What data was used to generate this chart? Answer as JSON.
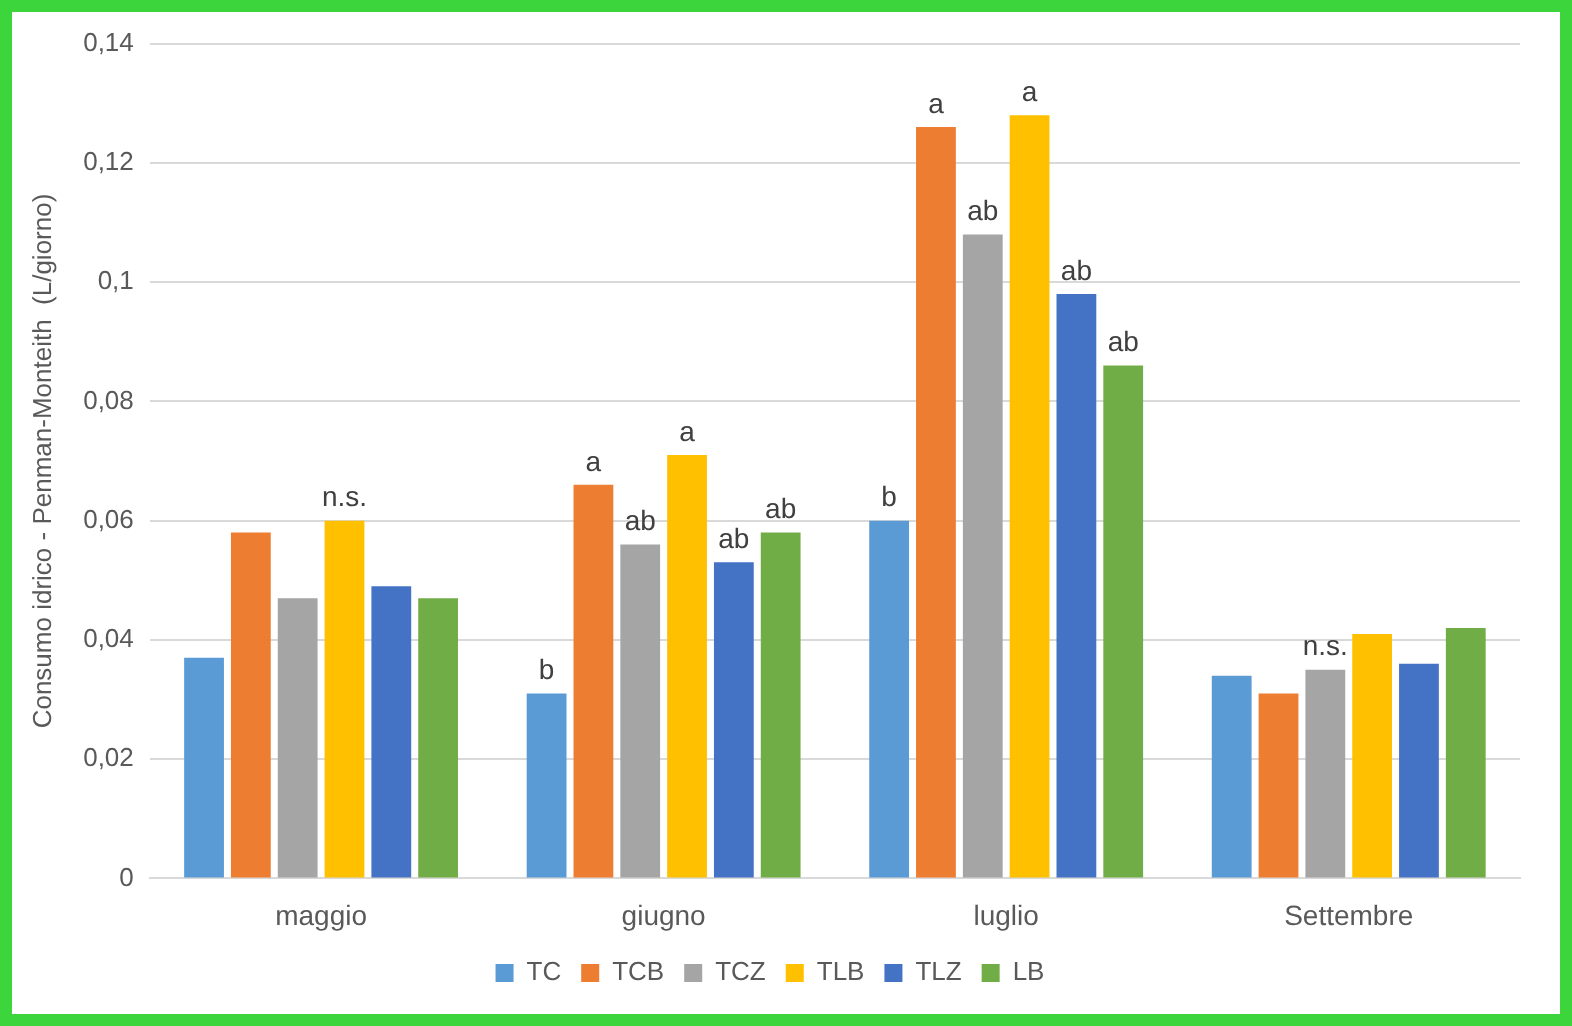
{
  "chart_data": {
    "type": "bar",
    "ylabel": "Consumo idrico - Penman-Monteith  (L/giorno)",
    "categories": [
      "maggio",
      "giugno",
      "luglio",
      "Settembre"
    ],
    "series": [
      {
        "name": "TC",
        "color": "#5b9bd5",
        "values": [
          0.037,
          0.031,
          0.06,
          0.034
        ],
        "value_labels": [
          null,
          "b",
          "b",
          null
        ]
      },
      {
        "name": "TCB",
        "color": "#ed7d31",
        "values": [
          0.058,
          0.066,
          0.126,
          0.031
        ],
        "value_labels": [
          null,
          "a",
          "a",
          null
        ]
      },
      {
        "name": "TCZ",
        "color": "#a5a5a5",
        "values": [
          0.047,
          0.056,
          0.108,
          0.035
        ],
        "value_labels": [
          null,
          "ab",
          "ab",
          "n.s."
        ]
      },
      {
        "name": "TLB",
        "color": "#ffc000",
        "values": [
          0.06,
          0.071,
          0.128,
          0.041
        ],
        "value_labels": [
          "n.s.",
          "a",
          "a",
          null
        ]
      },
      {
        "name": "TLZ",
        "color": "#4472c4",
        "values": [
          0.049,
          0.053,
          0.098,
          0.036
        ],
        "value_labels": [
          null,
          "ab",
          "ab",
          null
        ]
      },
      {
        "name": "LB",
        "color": "#70ad47",
        "values": [
          0.047,
          0.058,
          0.086,
          0.042
        ],
        "value_labels": [
          null,
          "ab",
          "ab",
          null
        ]
      }
    ],
    "ylim": [
      0,
      0.14
    ],
    "yticks": [
      0,
      {
        "value": 0.02,
        "label": "0,02"
      },
      {
        "value": 0.04,
        "label": "0,04"
      },
      {
        "value": 0.06,
        "label": "0,06"
      },
      {
        "value": 0.08,
        "label": "0,08"
      },
      {
        "value": 0.1,
        "label": "0,1"
      },
      {
        "value": 0.12,
        "label": "0,12"
      },
      {
        "value": 0.14,
        "label": "0,14"
      }
    ],
    "grid": "y",
    "legend": "bottom"
  }
}
